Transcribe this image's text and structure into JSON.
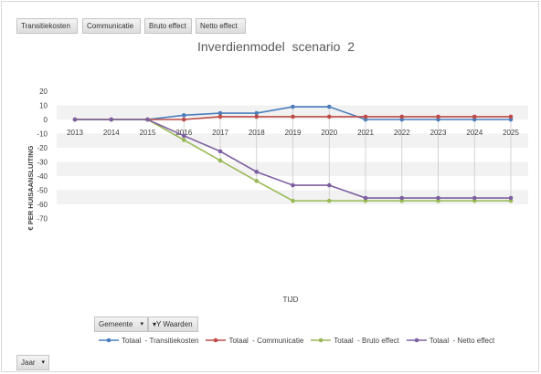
{
  "field_buttons": {
    "top": [
      "Transitiekosten",
      "Communicatie",
      "Bruto effect",
      "Netto effect"
    ],
    "axis_gemeente": "Gemeente",
    "axis_waarden": "Waarden",
    "filter_jaar": "Jaar"
  },
  "chart_data": {
    "type": "line",
    "title": "Inverdienmodel  scenario  2",
    "xlabel": "TIJD",
    "ylabel": "€ PER HUISAANSLUITING",
    "categories": [
      "2013",
      "2014",
      "2015",
      "2016",
      "2017",
      "2018",
      "2019",
      "2020",
      "2021",
      "2022",
      "2023",
      "2024",
      "2025"
    ],
    "ylim": [
      -70,
      20
    ],
    "yticks": [
      "20",
      "10",
      "0",
      "-10",
      "-20",
      "-30",
      "-40",
      "-50",
      "-60",
      "-70"
    ],
    "series": [
      {
        "name": "Totaal  - Transitiekosten",
        "color": "#4a7ebb",
        "values": [
          0,
          0,
          0,
          3,
          4.5,
          4.5,
          9,
          9,
          0,
          0,
          0,
          0,
          0
        ]
      },
      {
        "name": "Totaal  - Communicatie",
        "color": "#be4b48",
        "values": [
          0,
          0,
          0,
          0,
          2,
          2,
          2,
          2,
          2,
          2,
          2,
          2,
          2
        ]
      },
      {
        "name": "Totaal  - Bruto effect",
        "color": "#98b954",
        "values": [
          0,
          0,
          0,
          -14.5,
          -29,
          -43.5,
          -57.5,
          -57.5,
          -57.5,
          -57.5,
          -57.5,
          -57.5,
          -57.5
        ]
      },
      {
        "name": "Totaal  - Netto effect",
        "color": "#7d60a0",
        "values": [
          0,
          0,
          0,
          -11.5,
          -22.5,
          -37,
          -46.5,
          -46.5,
          -55.5,
          -55.5,
          -55.5,
          -55.5,
          -55.5
        ]
      }
    ],
    "grid": "alternating horizontal bands with vertical drop lines",
    "legend": "bottom"
  }
}
